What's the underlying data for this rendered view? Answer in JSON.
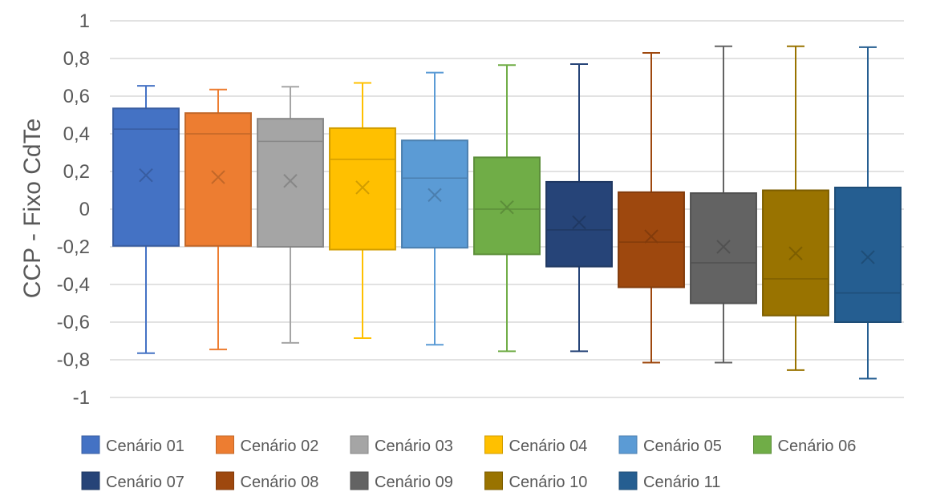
{
  "chart_data": {
    "type": "box",
    "title": "",
    "xlabel": "",
    "ylabel": "CCP - Fixo CdTe",
    "ylim": [
      -1,
      1
    ],
    "ytick_step": 0.2,
    "ytick_labels": [
      "-1",
      "-0,8",
      "-0,6",
      "-0,4",
      "-0,2",
      "0",
      "0,2",
      "0,4",
      "0,6",
      "0,8",
      "1"
    ],
    "grid": true,
    "legend_position": "bottom",
    "series": [
      {
        "name": "Cenário 01",
        "color": "#4472C4",
        "min": -0.765,
        "q1": -0.195,
        "median": 0.425,
        "q3": 0.535,
        "max": 0.655,
        "mean": 0.18
      },
      {
        "name": "Cenário 02",
        "color": "#ED7D31",
        "min": -0.745,
        "q1": -0.195,
        "median": 0.4,
        "q3": 0.51,
        "max": 0.635,
        "mean": 0.17
      },
      {
        "name": "Cenário 03",
        "color": "#A5A5A5",
        "min": -0.71,
        "q1": -0.2,
        "median": 0.36,
        "q3": 0.48,
        "max": 0.65,
        "mean": 0.15
      },
      {
        "name": "Cenário 04",
        "color": "#FFC000",
        "min": -0.685,
        "q1": -0.215,
        "median": 0.265,
        "q3": 0.43,
        "max": 0.67,
        "mean": 0.115
      },
      {
        "name": "Cenário 05",
        "color": "#5B9BD5",
        "min": -0.72,
        "q1": -0.205,
        "median": 0.165,
        "q3": 0.365,
        "max": 0.725,
        "mean": 0.075
      },
      {
        "name": "Cenário 06",
        "color": "#70AD47",
        "min": -0.755,
        "q1": -0.24,
        "median": 0.0,
        "q3": 0.275,
        "max": 0.765,
        "mean": 0.01
      },
      {
        "name": "Cenário 07",
        "color": "#264478",
        "min": -0.755,
        "q1": -0.305,
        "median": -0.11,
        "q3": 0.145,
        "max": 0.77,
        "mean": -0.07
      },
      {
        "name": "Cenário 08",
        "color": "#9E480E",
        "min": -0.815,
        "q1": -0.415,
        "median": -0.175,
        "q3": 0.09,
        "max": 0.83,
        "mean": -0.145
      },
      {
        "name": "Cenário 09",
        "color": "#636363",
        "min": -0.815,
        "q1": -0.5,
        "median": -0.285,
        "q3": 0.085,
        "max": 0.865,
        "mean": -0.2
      },
      {
        "name": "Cenário 10",
        "color": "#997300",
        "min": -0.855,
        "q1": -0.565,
        "median": -0.37,
        "q3": 0.1,
        "max": 0.865,
        "mean": -0.235
      },
      {
        "name": "Cenário 11",
        "color": "#255E91",
        "min": -0.9,
        "q1": -0.6,
        "median": -0.445,
        "q3": 0.115,
        "max": 0.86,
        "mean": -0.255
      }
    ]
  }
}
